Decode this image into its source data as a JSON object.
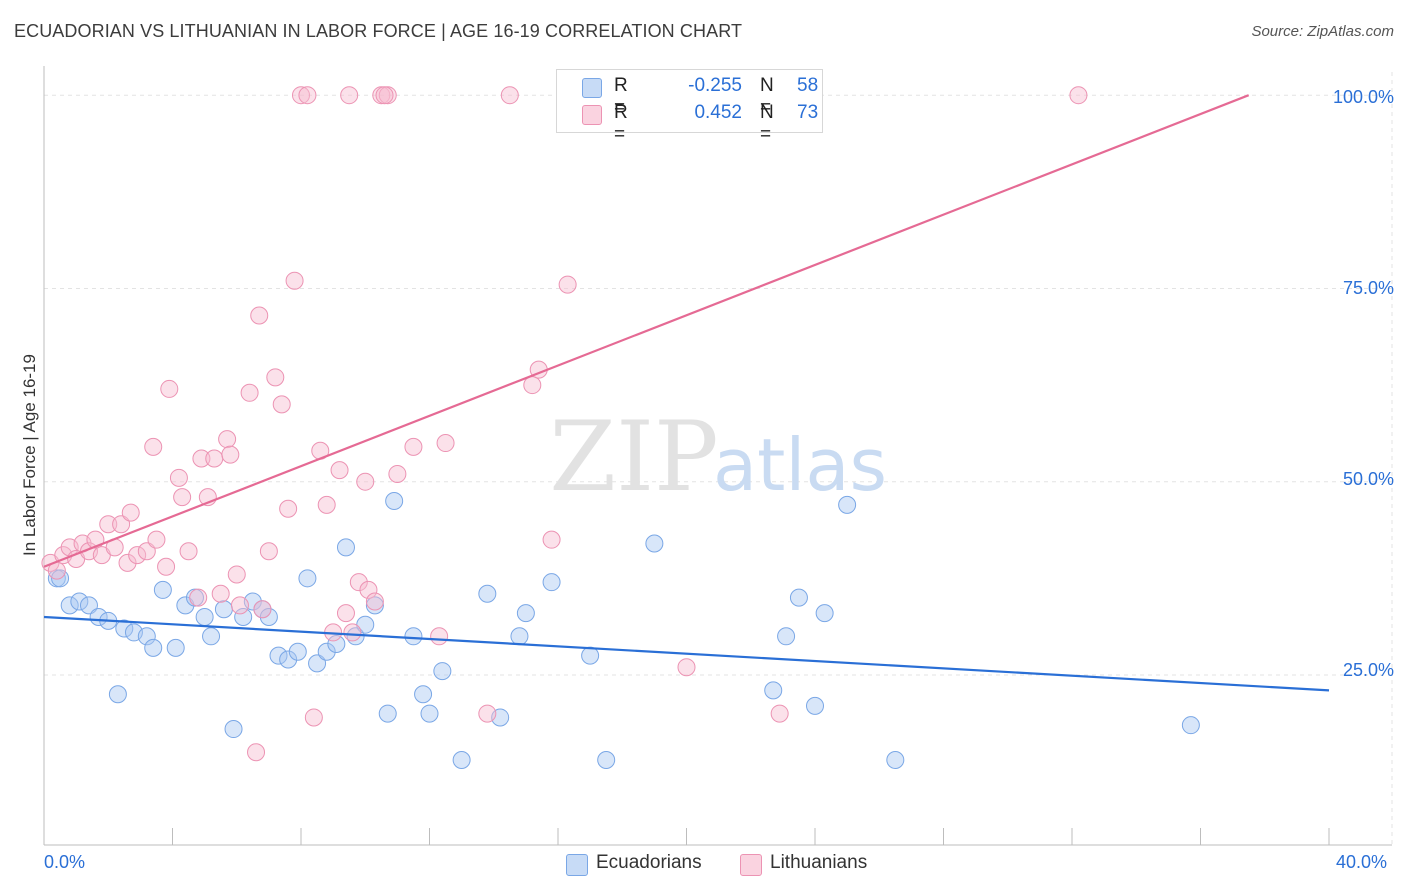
{
  "header": {
    "title": "ECUADORIAN VS LITHUANIAN IN LABOR FORCE | AGE 16-19 CORRELATION CHART",
    "source": "Source: ZipAtlas.com"
  },
  "watermark": {
    "zip": "ZIP",
    "atlas": "atlas"
  },
  "legend_top": [
    {
      "r_label": "R =",
      "r_value": "-0.255",
      "n_label": "N =",
      "n_value": "58",
      "color": "#a9c8f2"
    },
    {
      "r_label": "R =",
      "r_value": "0.452",
      "n_label": "N =",
      "n_value": "73",
      "color": "#f6bdd0"
    }
  ],
  "legend_bottom": [
    {
      "label": "Ecuadorians",
      "color": "#a9c8f2"
    },
    {
      "label": "Lithuanians",
      "color": "#f6bdd0"
    }
  ],
  "chart_data": {
    "type": "scatter",
    "title": "ECUADORIAN VS LITHUANIAN IN LABOR FORCE | AGE 16-19 CORRELATION CHART",
    "xlabel": "",
    "ylabel": "In Labor Force | Age 16-19",
    "xlim": [
      0,
      40
    ],
    "ylim": [
      3,
      103
    ],
    "x_tick_labels": [
      {
        "value": 0,
        "label": "0.0%"
      },
      {
        "value": 40,
        "label": "40.0%"
      }
    ],
    "y_tick_labels": [
      {
        "value": 100,
        "label": "100.0%"
      },
      {
        "value": 75,
        "label": "75.0%"
      },
      {
        "value": 50,
        "label": "50.0%"
      },
      {
        "value": 25,
        "label": "25.0%"
      }
    ],
    "grid": true,
    "legend_position": "top-center",
    "series": [
      {
        "name": "Ecuadorians",
        "color": "#a9c8f2",
        "stroke": "#7aa7e6",
        "trend_color": "#2a6fd6",
        "trend": [
          [
            0,
            32.5
          ],
          [
            40,
            23.0
          ]
        ],
        "points": [
          [
            0.4,
            37.5
          ],
          [
            0.8,
            34.0
          ],
          [
            1.1,
            34.5
          ],
          [
            1.4,
            34.0
          ],
          [
            1.7,
            32.5
          ],
          [
            2.0,
            32.0
          ],
          [
            2.3,
            22.5
          ],
          [
            2.5,
            31.0
          ],
          [
            2.8,
            30.5
          ],
          [
            3.2,
            30.0
          ],
          [
            3.4,
            28.5
          ],
          [
            3.7,
            36.0
          ],
          [
            4.1,
            28.5
          ],
          [
            4.4,
            34.0
          ],
          [
            4.7,
            35.0
          ],
          [
            5.0,
            32.5
          ],
          [
            5.2,
            30.0
          ],
          [
            5.6,
            33.5
          ],
          [
            5.9,
            18.0
          ],
          [
            6.2,
            32.5
          ],
          [
            6.5,
            34.5
          ],
          [
            6.8,
            33.5
          ],
          [
            7.0,
            32.5
          ],
          [
            7.3,
            27.5
          ],
          [
            7.6,
            27.0
          ],
          [
            7.9,
            28.0
          ],
          [
            8.2,
            37.5
          ],
          [
            8.5,
            26.5
          ],
          [
            8.8,
            28.0
          ],
          [
            9.1,
            29.0
          ],
          [
            9.4,
            41.5
          ],
          [
            9.7,
            30.0
          ],
          [
            10.0,
            31.5
          ],
          [
            10.3,
            34.0
          ],
          [
            10.7,
            20.0
          ],
          [
            10.9,
            47.5
          ],
          [
            11.5,
            30.0
          ],
          [
            11.8,
            22.5
          ],
          [
            12.0,
            20.0
          ],
          [
            12.4,
            25.5
          ],
          [
            13.0,
            14.0
          ],
          [
            13.8,
            35.5
          ],
          [
            14.2,
            19.5
          ],
          [
            14.8,
            30.0
          ],
          [
            15.0,
            33.0
          ],
          [
            15.8,
            37.0
          ],
          [
            17.0,
            27.5
          ],
          [
            17.5,
            14.0
          ],
          [
            19.0,
            42.0
          ],
          [
            22.7,
            23.0
          ],
          [
            23.1,
            30.0
          ],
          [
            23.5,
            35.0
          ],
          [
            24.0,
            21.0
          ],
          [
            24.3,
            33.0
          ],
          [
            25.0,
            47.0
          ],
          [
            26.5,
            14.0
          ],
          [
            35.7,
            18.5
          ],
          [
            0.5,
            37.5
          ]
        ]
      },
      {
        "name": "Lithuanians",
        "color": "#f6bdd0",
        "stroke": "#ec93b3",
        "trend_color": "#e56a94",
        "trend": [
          [
            0,
            39.0
          ],
          [
            37.5,
            100.0
          ]
        ],
        "points": [
          [
            0.2,
            39.5
          ],
          [
            0.4,
            38.5
          ],
          [
            0.6,
            40.5
          ],
          [
            0.8,
            41.5
          ],
          [
            1.0,
            40.0
          ],
          [
            1.2,
            42.0
          ],
          [
            1.4,
            41.0
          ],
          [
            1.6,
            42.5
          ],
          [
            1.8,
            40.5
          ],
          [
            2.0,
            44.5
          ],
          [
            2.2,
            41.5
          ],
          [
            2.4,
            44.5
          ],
          [
            2.6,
            39.5
          ],
          [
            2.7,
            46.0
          ],
          [
            2.9,
            40.5
          ],
          [
            3.2,
            41.0
          ],
          [
            3.4,
            54.5
          ],
          [
            3.5,
            42.5
          ],
          [
            3.8,
            39.0
          ],
          [
            3.9,
            62.0
          ],
          [
            4.2,
            50.5
          ],
          [
            4.3,
            48.0
          ],
          [
            4.5,
            41.0
          ],
          [
            4.8,
            35.0
          ],
          [
            4.9,
            53.0
          ],
          [
            5.1,
            48.0
          ],
          [
            5.3,
            53.0
          ],
          [
            5.5,
            35.5
          ],
          [
            5.7,
            55.5
          ],
          [
            5.8,
            53.5
          ],
          [
            6.0,
            38.0
          ],
          [
            6.1,
            34.0
          ],
          [
            6.4,
            61.5
          ],
          [
            6.7,
            71.5
          ],
          [
            6.8,
            33.5
          ],
          [
            7.0,
            41.0
          ],
          [
            7.2,
            63.5
          ],
          [
            7.4,
            60.0
          ],
          [
            7.6,
            46.5
          ],
          [
            7.8,
            76.0
          ],
          [
            8.0,
            100.0
          ],
          [
            8.2,
            100.0
          ],
          [
            8.4,
            19.5
          ],
          [
            8.6,
            54.0
          ],
          [
            8.8,
            47.0
          ],
          [
            9.0,
            30.5
          ],
          [
            9.2,
            51.5
          ],
          [
            9.4,
            33.0
          ],
          [
            9.6,
            30.5
          ],
          [
            9.8,
            37.0
          ],
          [
            10.0,
            50.0
          ],
          [
            10.1,
            36.0
          ],
          [
            10.3,
            34.5
          ],
          [
            10.5,
            100.0
          ],
          [
            10.7,
            100.0
          ],
          [
            11.0,
            51.0
          ],
          [
            11.5,
            54.5
          ],
          [
            12.3,
            30.0
          ],
          [
            12.5,
            55.0
          ],
          [
            13.8,
            20.0
          ],
          [
            14.5,
            100.0
          ],
          [
            15.2,
            62.5
          ],
          [
            15.4,
            64.5
          ],
          [
            15.8,
            42.5
          ],
          [
            16.3,
            75.5
          ],
          [
            19.2,
            100.0
          ],
          [
            20.0,
            26.0
          ],
          [
            22.5,
            100.0
          ],
          [
            22.9,
            20.0
          ],
          [
            32.2,
            100.0
          ],
          [
            6.6,
            15.0
          ],
          [
            9.5,
            100.0
          ],
          [
            10.6,
            100.0
          ]
        ]
      }
    ]
  }
}
